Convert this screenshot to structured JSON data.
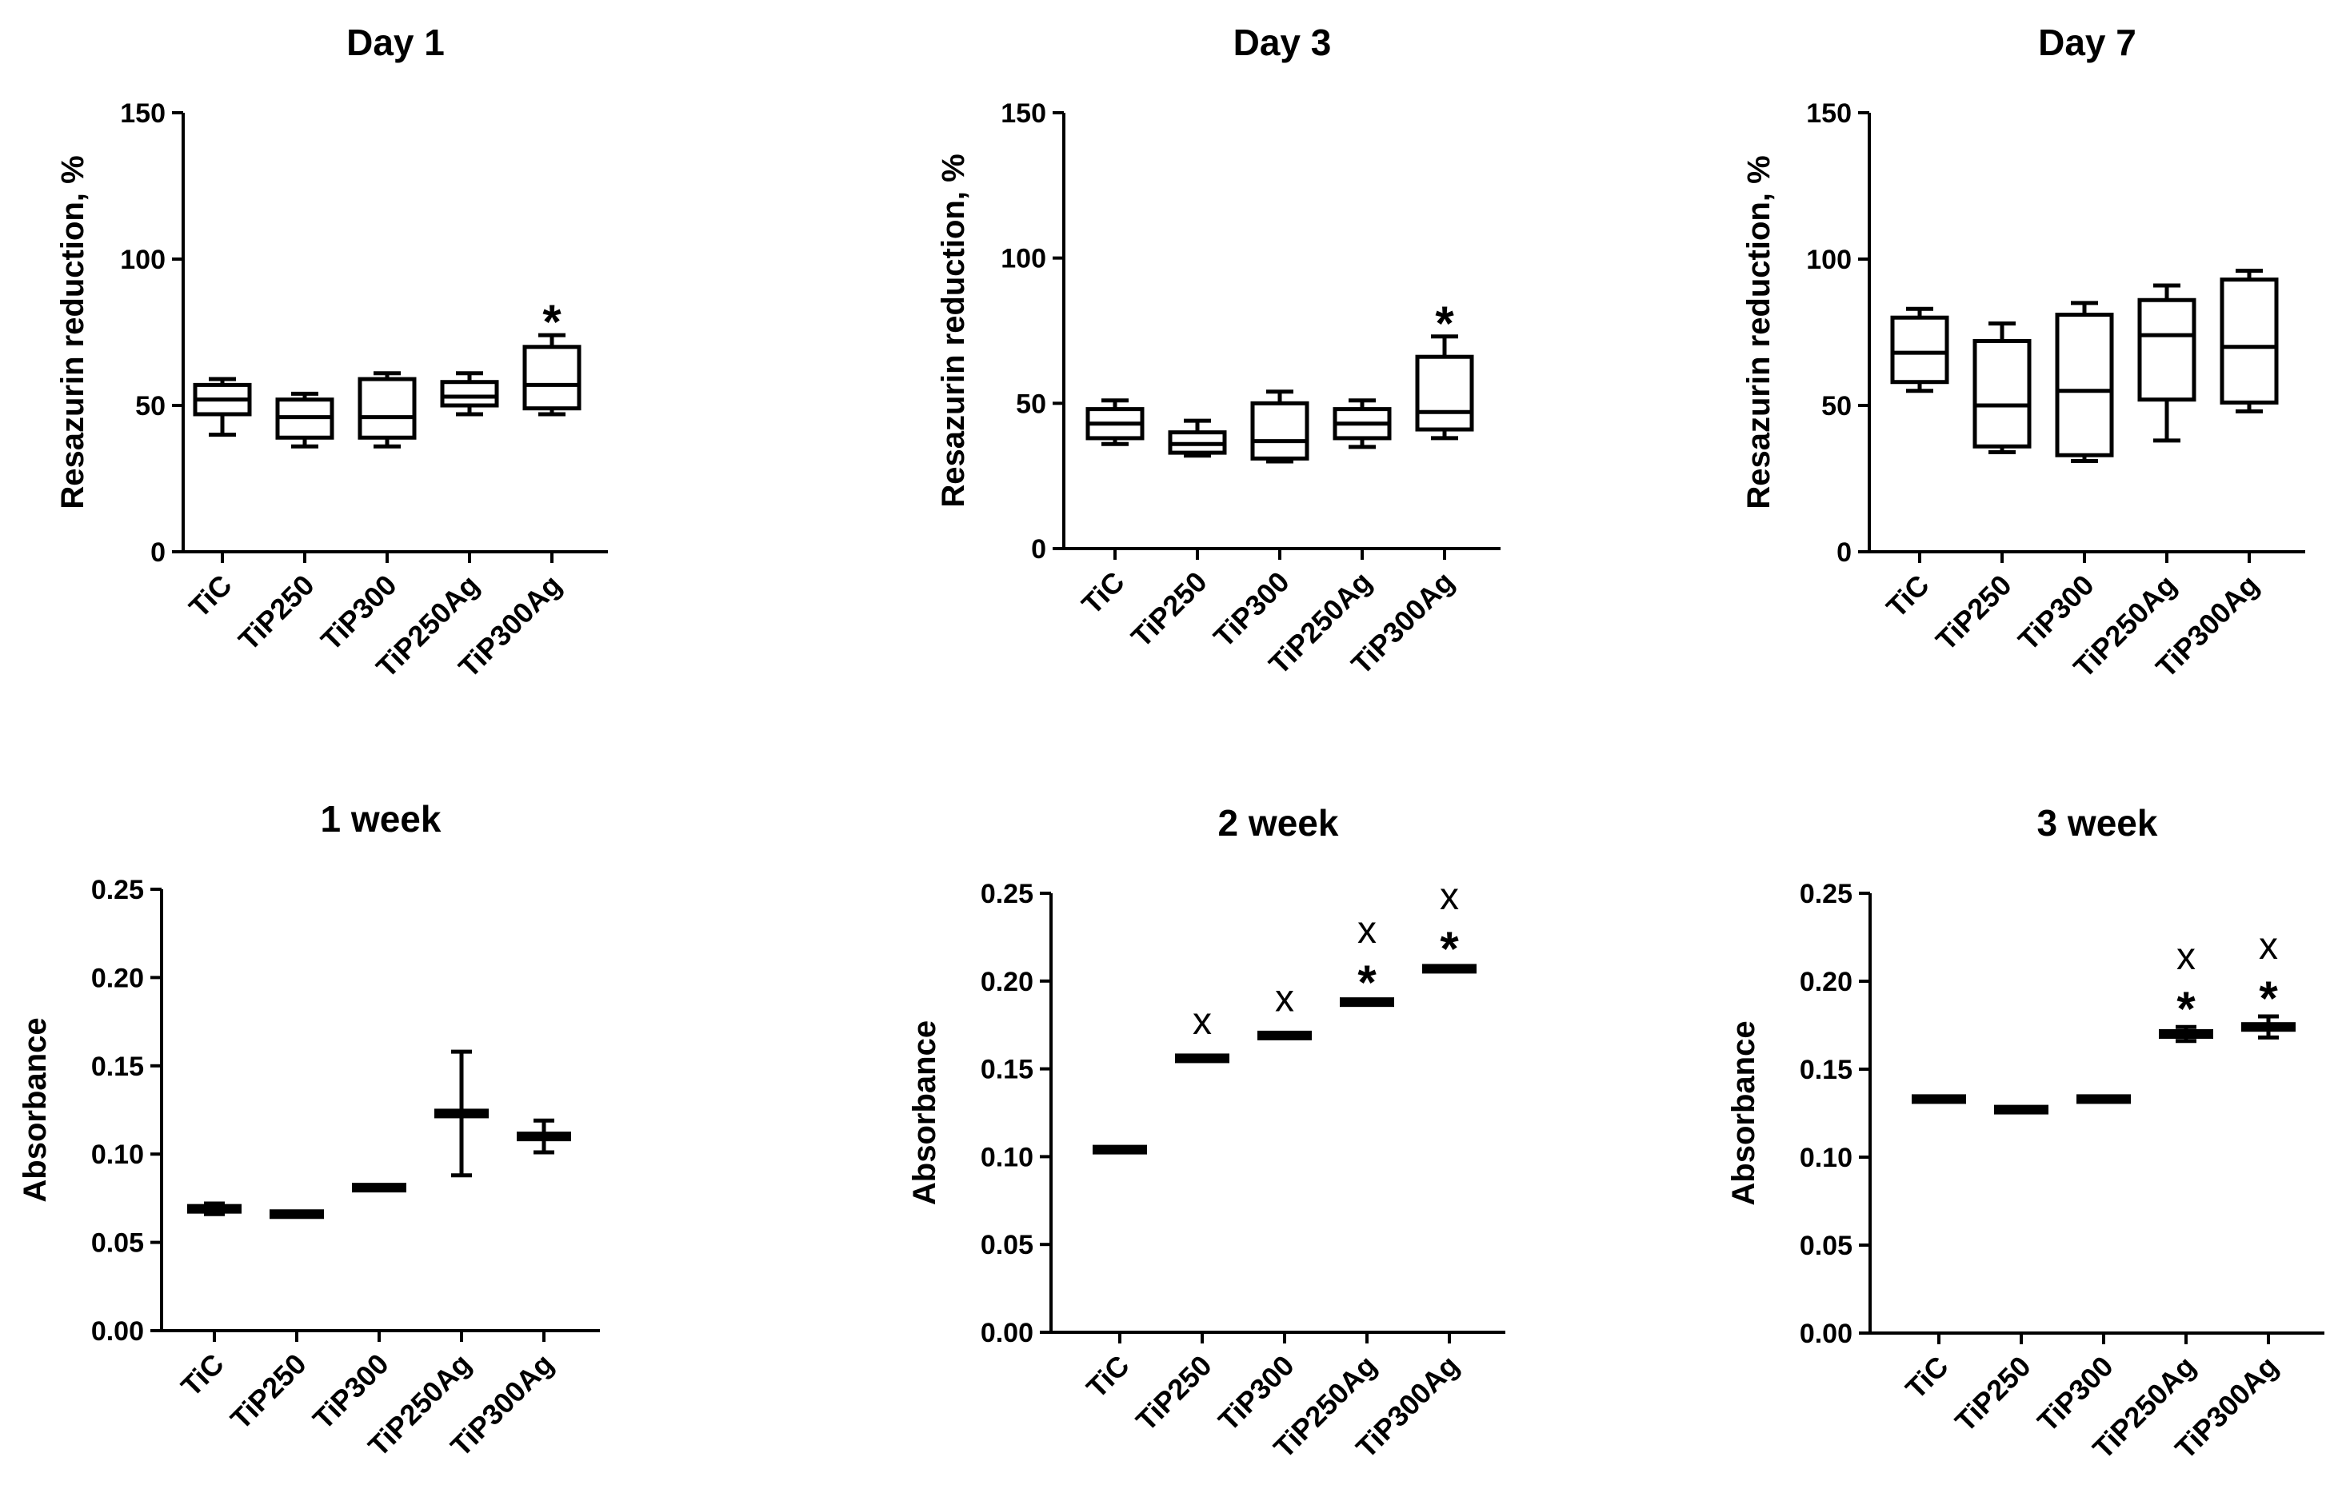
{
  "chart_data": [
    {
      "type": "box",
      "title": "Day 1",
      "ylabel": "Resazurin reduction, %",
      "ylim": [
        0,
        150
      ],
      "yticks": [
        "0",
        "50",
        "100",
        "150"
      ],
      "categories": [
        "TiC",
        "TiP250",
        "TiP300",
        "TiP250Ag",
        "TiP300Ag"
      ],
      "boxes": [
        {
          "min": 40,
          "q1": 47,
          "median": 52,
          "q3": 57,
          "max": 59
        },
        {
          "min": 36,
          "q1": 39,
          "median": 46,
          "q3": 52,
          "max": 54
        },
        {
          "min": 36,
          "q1": 39,
          "median": 46,
          "q3": 59,
          "max": 61
        },
        {
          "min": 47,
          "q1": 50,
          "median": 53,
          "q3": 58,
          "max": 61
        },
        {
          "min": 47,
          "q1": 49,
          "median": 57,
          "q3": 70,
          "max": 74
        }
      ],
      "annotations": [
        {
          "category": "TiP300Ag",
          "marks": [
            "*"
          ]
        }
      ]
    },
    {
      "type": "box",
      "title": "Day 3",
      "ylabel": "Resazurin reduction, %",
      "ylim": [
        0,
        150
      ],
      "yticks": [
        "0",
        "50",
        "100",
        "150"
      ],
      "categories": [
        "TiC",
        "TiP250",
        "TiP300",
        "TiP250Ag",
        "TiP300Ag"
      ],
      "boxes": [
        {
          "min": 36,
          "q1": 38,
          "median": 43,
          "q3": 48,
          "max": 51
        },
        {
          "min": 32,
          "q1": 33,
          "median": 36,
          "q3": 40,
          "max": 44
        },
        {
          "min": 30,
          "q1": 31,
          "median": 37,
          "q3": 50,
          "max": 54
        },
        {
          "min": 35,
          "q1": 38,
          "median": 43,
          "q3": 48,
          "max": 51
        },
        {
          "min": 38,
          "q1": 41,
          "median": 47,
          "q3": 66,
          "max": 73
        }
      ],
      "annotations": [
        {
          "category": "TiP300Ag",
          "marks": [
            "*"
          ]
        }
      ]
    },
    {
      "type": "box",
      "title": "Day 7",
      "ylabel": "Resazurin reduction, %",
      "ylim": [
        0,
        150
      ],
      "yticks": [
        "0",
        "50",
        "100",
        "150"
      ],
      "categories": [
        "TiC",
        "TiP250",
        "TiP300",
        "TiP250Ag",
        "TiP300Ag"
      ],
      "boxes": [
        {
          "min": 55,
          "q1": 58,
          "median": 68,
          "q3": 80,
          "max": 83
        },
        {
          "min": 34,
          "q1": 36,
          "median": 50,
          "q3": 72,
          "max": 78
        },
        {
          "min": 31,
          "q1": 33,
          "median": 55,
          "q3": 81,
          "max": 85
        },
        {
          "min": 38,
          "q1": 52,
          "median": 74,
          "q3": 86,
          "max": 91
        },
        {
          "min": 48,
          "q1": 51,
          "median": 70,
          "q3": 93,
          "max": 96
        }
      ],
      "annotations": []
    },
    {
      "type": "bar-errorbar",
      "title": "1 week",
      "ylabel": "Absorbance",
      "ylim": [
        0,
        0.25
      ],
      "yticks": [
        "0.00",
        "0.05",
        "0.10",
        "0.15",
        "0.20",
        "0.25"
      ],
      "categories": [
        "TiC",
        "TiP250",
        "TiP300",
        "TiP250Ag",
        "TiP300Ag"
      ],
      "values": [
        0.069,
        0.066,
        0.081,
        0.123,
        0.11
      ],
      "errors": [
        0.003,
        0.001,
        0.001,
        0.035,
        0.009
      ],
      "annotations": []
    },
    {
      "type": "bar-errorbar",
      "title": "2 week",
      "ylabel": "Absorbance",
      "ylim": [
        0,
        0.25
      ],
      "yticks": [
        "0.00",
        "0.05",
        "0.10",
        "0.15",
        "0.20",
        "0.25"
      ],
      "categories": [
        "TiC",
        "TiP250",
        "TiP300",
        "TiP250Ag",
        "TiP300Ag"
      ],
      "values": [
        0.104,
        0.156,
        0.169,
        0.188,
        0.207
      ],
      "errors": [
        0.001,
        0.001,
        0.001,
        0.001,
        0.001
      ],
      "annotations": [
        {
          "category": "TiP250",
          "marks": [
            "x"
          ]
        },
        {
          "category": "TiP300",
          "marks": [
            "x"
          ]
        },
        {
          "category": "TiP250Ag",
          "marks": [
            "*",
            "x"
          ]
        },
        {
          "category": "TiP300Ag",
          "marks": [
            "*",
            "x"
          ]
        }
      ]
    },
    {
      "type": "bar-errorbar",
      "title": "3 week",
      "ylabel": "Absorbance",
      "ylim": [
        0,
        0.25
      ],
      "yticks": [
        "0.00",
        "0.05",
        "0.10",
        "0.15",
        "0.20",
        "0.25"
      ],
      "categories": [
        "TiC",
        "TiP250",
        "TiP300",
        "TiP250Ag",
        "TiP300Ag"
      ],
      "values": [
        0.133,
        0.127,
        0.133,
        0.17,
        0.174
      ],
      "errors": [
        0.001,
        0.001,
        0.001,
        0.004,
        0.006
      ],
      "annotations": [
        {
          "category": "TiP250Ag",
          "marks": [
            "*",
            "x"
          ]
        },
        {
          "category": "TiP300Ag",
          "marks": [
            "*",
            "x"
          ]
        }
      ]
    }
  ]
}
